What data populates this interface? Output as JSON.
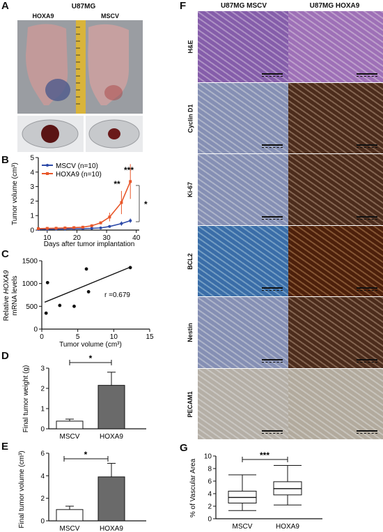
{
  "panel_letters": {
    "a": "A",
    "b": "B",
    "c": "C",
    "d": "D",
    "e": "E",
    "f": "F",
    "g": "G"
  },
  "panel_a": {
    "title": "U87MG",
    "labels": [
      "HOXA9",
      "MSCV"
    ]
  },
  "panel_f": {
    "col_labels": [
      "U87MG MSCV",
      "U87MG HOXA9"
    ],
    "row_labels": [
      "H&E",
      "Cyclin D1",
      "Ki-67",
      "BCL2",
      "Nestin",
      "PECAM1"
    ],
    "colors": {
      "he_left": "#b89ad0",
      "he_right": "#c9a9d8",
      "ihc_left": "#b8bfd6",
      "ihc_right": "#8b6a55",
      "bcl2_left": "#7aa7cf",
      "bcl2_right": "#8c5a36",
      "pecam_left": "#d7d3ce",
      "pecam_right": "#d5d0c8"
    }
  },
  "chart_data": [
    {
      "panel": "B",
      "type": "line",
      "xlabel": "Days after tumor implantation",
      "ylabel": "Tumor volume (cm³)",
      "xlim": [
        7,
        41
      ],
      "ylim": [
        0,
        5
      ],
      "xticks": [
        "10",
        "20",
        "30",
        "40"
      ],
      "yticks": [
        "0",
        "1",
        "2",
        "3",
        "4",
        "5"
      ],
      "legend": "top-left",
      "series": [
        {
          "name": "MSCV (n=10)",
          "color": "#2d4aa8",
          "x": [
            7,
            10,
            13,
            16,
            19,
            22,
            25,
            28,
            31,
            35,
            38
          ],
          "y": [
            0.05,
            0.06,
            0.07,
            0.08,
            0.09,
            0.1,
            0.12,
            0.15,
            0.25,
            0.45,
            0.65
          ]
        },
        {
          "name": "HOXA9 (n=10)",
          "color": "#e8572a",
          "x": [
            7,
            10,
            13,
            16,
            19,
            22,
            25,
            28,
            31,
            35,
            38
          ],
          "y": [
            0.1,
            0.12,
            0.13,
            0.15,
            0.17,
            0.2,
            0.3,
            0.5,
            0.9,
            1.9,
            3.35
          ]
        }
      ],
      "annotations": [
        "**",
        "***",
        "*"
      ]
    },
    {
      "panel": "C",
      "type": "scatter",
      "xlabel": "Tumor volume (cm³)",
      "ylabel_italic": "HOXA9",
      "ylabel_lines": [
        "Relative",
        "mRNA levels"
      ],
      "xlim": [
        0,
        15
      ],
      "ylim": [
        0,
        1500
      ],
      "xticks": [
        "0",
        "5",
        "10",
        "15"
      ],
      "yticks": [
        "0",
        "500",
        "1000",
        "1500"
      ],
      "x": [
        0.6,
        0.8,
        2.5,
        4.5,
        6.2,
        6.5,
        12.3
      ],
      "y": [
        350,
        1020,
        520,
        500,
        1320,
        820,
        1350
      ],
      "fit_line": {
        "x": [
          0.4,
          12.3
        ],
        "y": [
          590,
          1360
        ]
      },
      "annotation": "r =0.679"
    },
    {
      "panel": "D",
      "type": "bar",
      "ylabel": "Final tumor weight (g)",
      "categories": [
        "MSCV",
        "HOXA9"
      ],
      "values": [
        0.38,
        2.15
      ],
      "errors": [
        0.1,
        0.65
      ],
      "ylim": [
        0,
        3
      ],
      "yticks": [
        "0",
        "1",
        "2",
        "3"
      ],
      "colors": [
        "#ffffff",
        "#6a6a6a"
      ],
      "annotation": "*"
    },
    {
      "panel": "E",
      "type": "bar",
      "ylabel": "Final tumor volume (cm³)",
      "categories": [
        "MSCV",
        "HOXA9"
      ],
      "values": [
        1.0,
        3.9
      ],
      "errors": [
        0.3,
        1.2
      ],
      "ylim": [
        0,
        6
      ],
      "yticks": [
        "0",
        "2",
        "4",
        "6"
      ],
      "colors": [
        "#ffffff",
        "#6a6a6a"
      ],
      "annotation": "*"
    },
    {
      "panel": "G",
      "type": "box",
      "ylabel": "% of Vascular Area",
      "categories": [
        "MSCV",
        "HOXA9"
      ],
      "ylim": [
        0,
        10
      ],
      "yticks": [
        "0",
        "2",
        "4",
        "6",
        "8",
        "10"
      ],
      "boxes": [
        {
          "min": 1.3,
          "q1": 2.5,
          "median": 3.4,
          "q3": 4.4,
          "max": 7.0
        },
        {
          "min": 2.2,
          "q1": 3.8,
          "median": 4.8,
          "q3": 5.9,
          "max": 8.5
        }
      ],
      "annotation": "***"
    }
  ]
}
